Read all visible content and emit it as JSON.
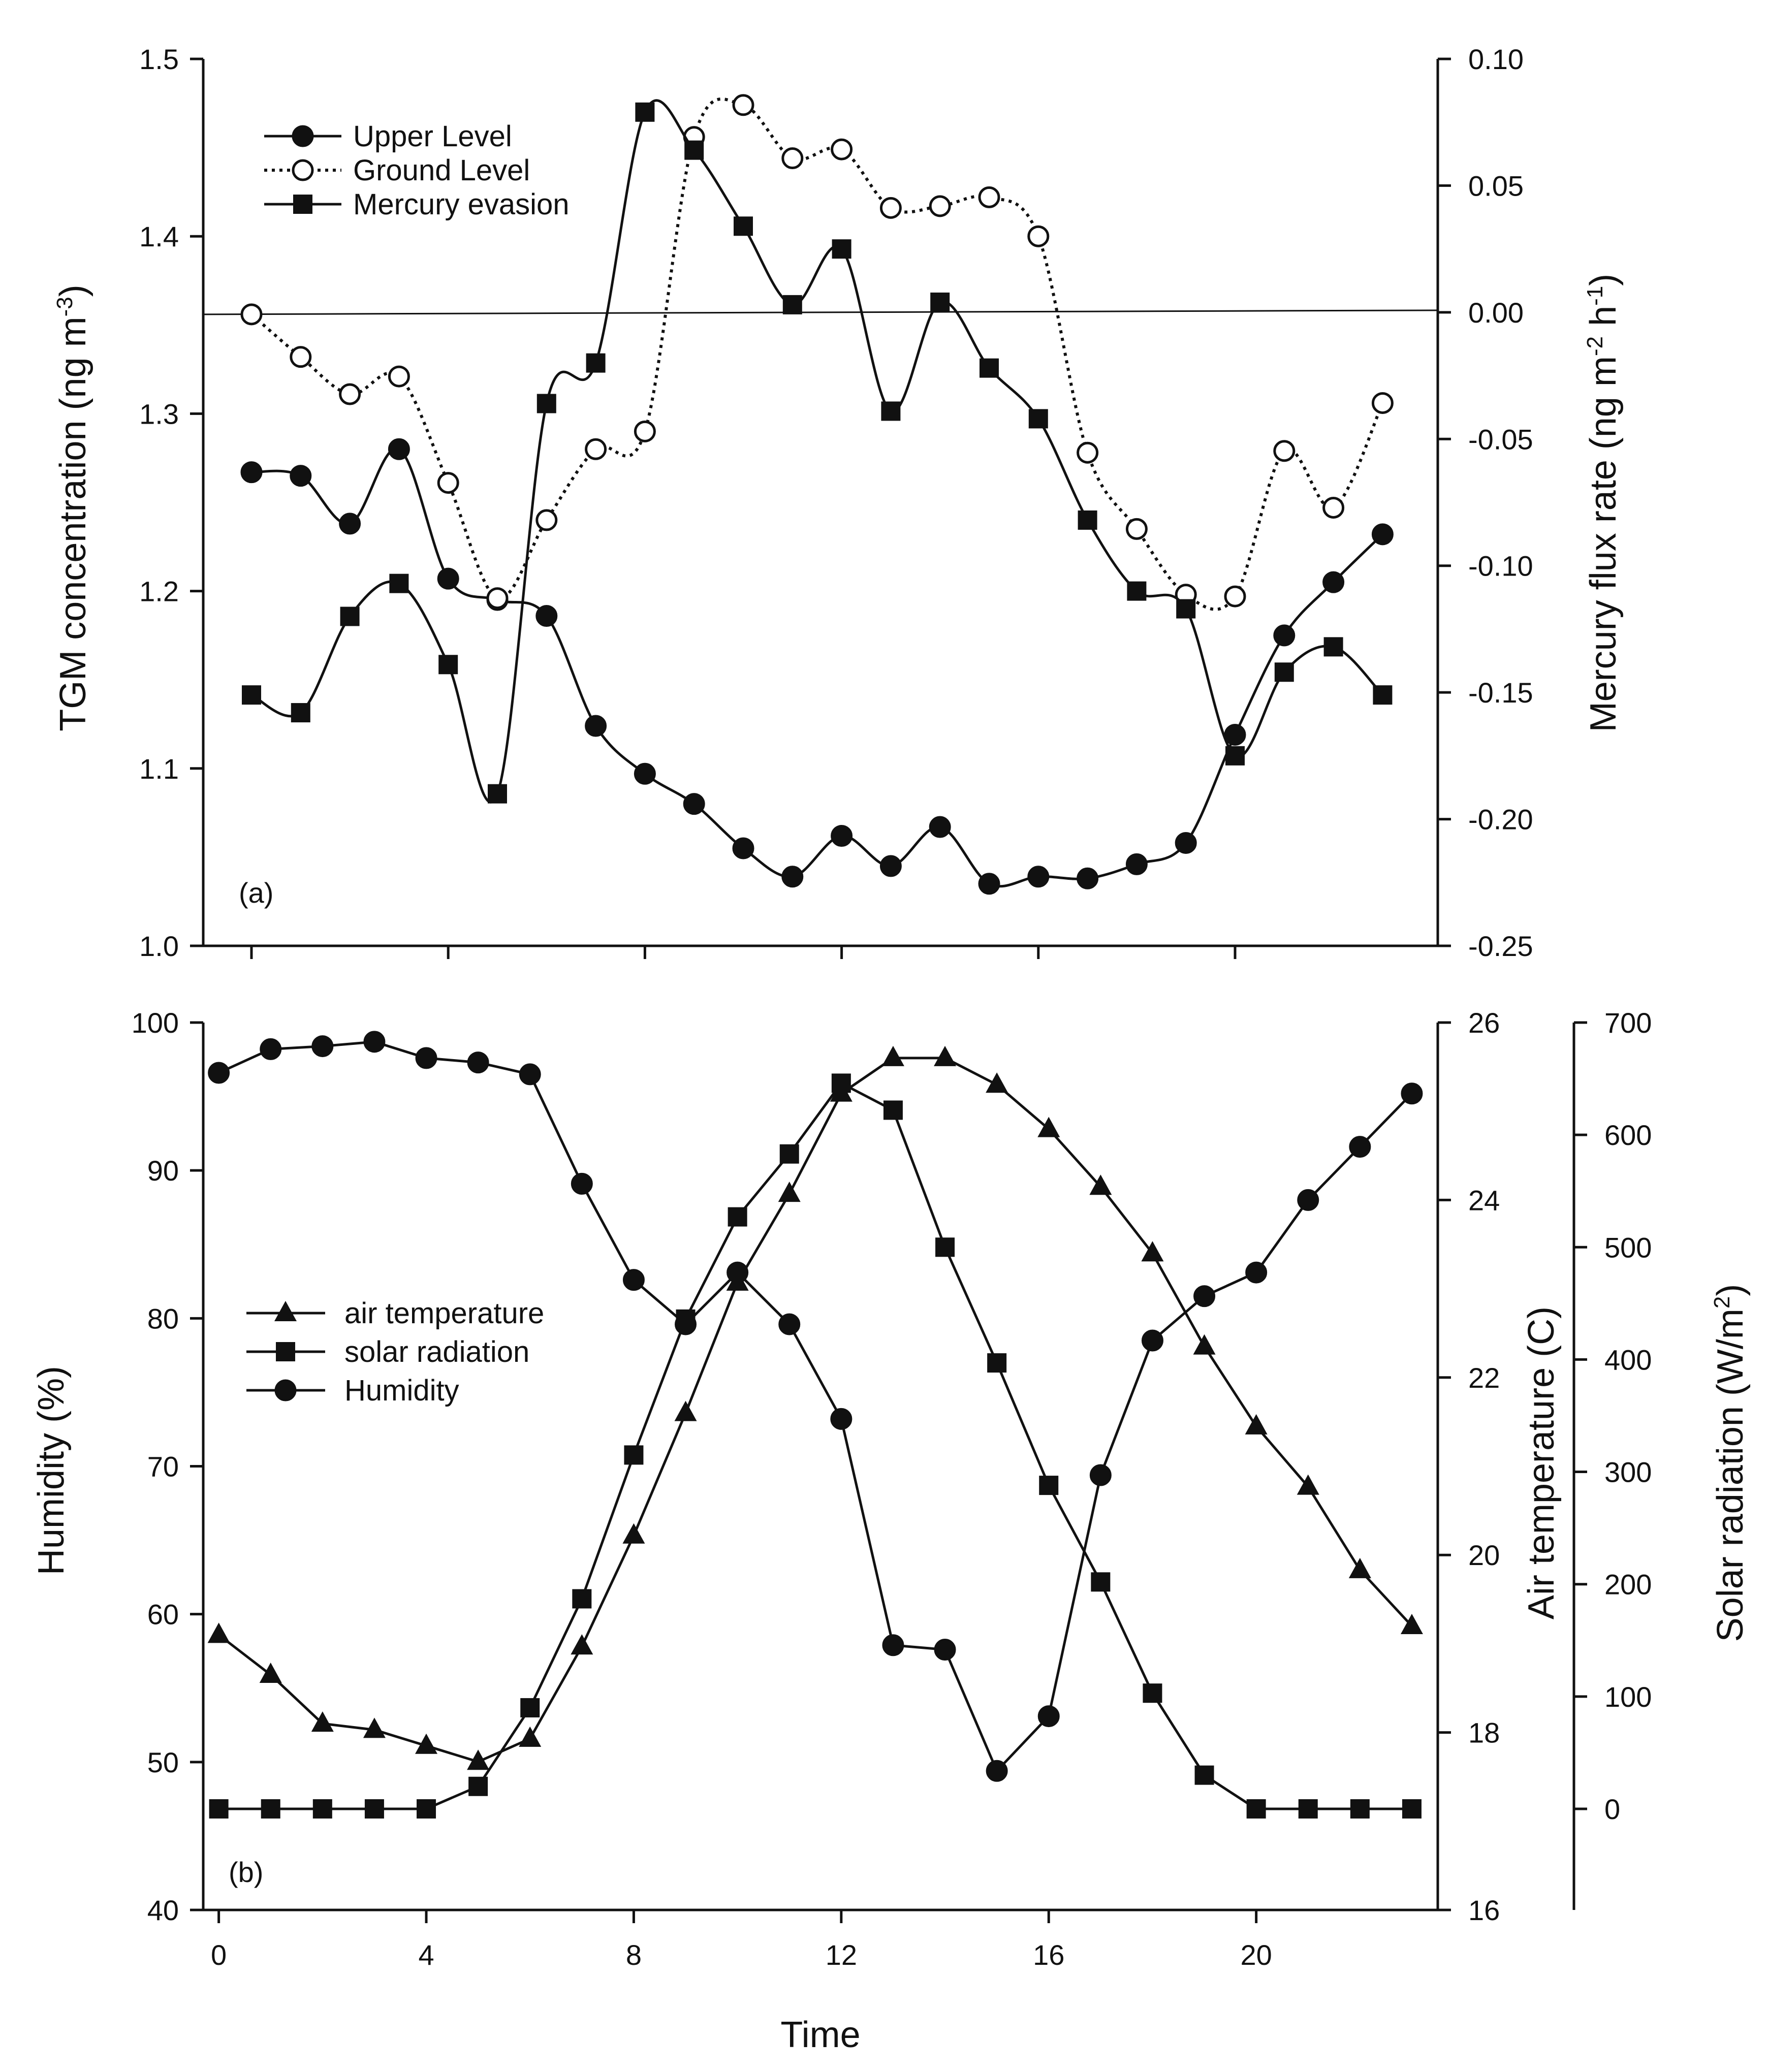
{
  "chart_data": [
    {
      "type": "line",
      "panel_label": "(a)",
      "xlabel": "",
      "ylabel_left": "TGM concentration (ng m",
      "ylabel_left_sup": "-3",
      "ylabel_right_parts": [
        "Mercury flux rate (ng m",
        "-2",
        " h",
        "-1",
        ")"
      ],
      "y_left_range": [
        1.0,
        1.5
      ],
      "y_left_ticks": [
        "1.0",
        "1.1",
        "1.2",
        "1.3",
        "1.4",
        "1.5"
      ],
      "y_right_range": [
        -0.25,
        0.1
      ],
      "y_right_ticks": [
        "-0.25",
        "-0.20",
        "-0.15",
        "-0.10",
        "-0.05",
        "0.00",
        "0.05",
        "0.10"
      ],
      "series": [
        {
          "name": "Upper Level",
          "marker": "circle-filled",
          "line": "solid",
          "axis": "left",
          "x": [
            0,
            1,
            2,
            3,
            4,
            5,
            6,
            7,
            8,
            9,
            10,
            11,
            12,
            13,
            14,
            15,
            16,
            17,
            18,
            19,
            20,
            21,
            22,
            23
          ],
          "values": [
            1.267,
            1.265,
            1.238,
            1.28,
            1.207,
            1.195,
            1.186,
            1.124,
            1.097,
            1.08,
            1.055,
            1.039,
            1.062,
            1.045,
            1.067,
            1.035,
            1.039,
            1.038,
            1.046,
            1.058,
            1.119,
            1.175,
            1.205,
            1.232
          ]
        },
        {
          "name": "Ground Level",
          "marker": "circle-open",
          "line": "dotted",
          "axis": "left",
          "x": [
            0,
            1,
            2,
            3,
            4,
            5,
            6,
            7,
            8,
            9,
            10,
            11,
            12,
            13,
            14,
            15,
            16,
            17,
            18,
            19,
            20,
            21,
            22,
            23
          ],
          "values": [
            1.356,
            1.332,
            1.311,
            1.321,
            1.261,
            1.196,
            1.24,
            1.28,
            1.29,
            1.456,
            1.474,
            1.444,
            1.449,
            1.416,
            1.417,
            1.422,
            1.4,
            1.278,
            1.235,
            1.198,
            1.197,
            1.279,
            1.247,
            1.306
          ]
        },
        {
          "name": "Mercury evasion",
          "marker": "square-filled",
          "line": "solid",
          "axis": "right",
          "x": [
            0,
            1,
            2,
            3,
            4,
            5,
            6,
            7,
            8,
            9,
            10,
            11,
            12,
            13,
            14,
            15,
            16,
            17,
            18,
            19,
            20,
            21,
            22,
            23
          ],
          "values": [
            -0.151,
            -0.158,
            -0.12,
            -0.107,
            -0.139,
            -0.19,
            -0.036,
            -0.02,
            0.079,
            0.064,
            0.034,
            0.003,
            0.025,
            -0.039,
            0.004,
            -0.022,
            -0.042,
            -0.082,
            -0.11,
            -0.117,
            -0.175,
            -0.142,
            -0.132,
            -0.151
          ]
        }
      ]
    },
    {
      "type": "line",
      "panel_label": "(b)",
      "xlabel": "Time",
      "x_ticks": [
        "0",
        "4",
        "8",
        "12",
        "16",
        "20"
      ],
      "x_range": [
        -0.3,
        23.5
      ],
      "ylabel_left": "Humidity (%)",
      "ylabel_right": "Air temperature (C)",
      "ylabel_far_right_parts": [
        "Solar radiation (W/m",
        "2",
        ")"
      ],
      "y_left_range": [
        40,
        100
      ],
      "y_left_ticks": [
        "40",
        "50",
        "60",
        "70",
        "80",
        "90",
        "100"
      ],
      "y_right_range": [
        16,
        26
      ],
      "y_right_ticks": [
        "16",
        "18",
        "20",
        "22",
        "24",
        "26"
      ],
      "y_far_right_range": [
        -90,
        700
      ],
      "y_far_right_ticks": [
        "0",
        "100",
        "200",
        "300",
        "400",
        "500",
        "600",
        "700"
      ],
      "series": [
        {
          "name": "air temperature",
          "marker": "triangle-filled",
          "axis": "right",
          "x": [
            0,
            1,
            2,
            3,
            4,
            5,
            6,
            7,
            8,
            9,
            10,
            11,
            12,
            13,
            14,
            15,
            16,
            17,
            18,
            19,
            20,
            21,
            22,
            23
          ],
          "values": [
            19.1,
            18.65,
            18.1,
            18.03,
            17.85,
            17.67,
            17.93,
            18.97,
            20.22,
            21.6,
            23.07,
            24.07,
            25.2,
            25.6,
            25.6,
            25.3,
            24.8,
            24.15,
            23.4,
            22.35,
            21.45,
            20.77,
            19.83,
            19.2
          ]
        },
        {
          "name": "solar radiation",
          "marker": "square-filled",
          "axis": "far-right",
          "x": [
            0,
            1,
            2,
            3,
            4,
            5,
            6,
            7,
            8,
            9,
            10,
            11,
            12,
            13,
            14,
            15,
            16,
            17,
            18,
            19,
            20,
            21,
            22,
            23
          ],
          "values": [
            0,
            0,
            0,
            0,
            0,
            20,
            90,
            187,
            315,
            436,
            527,
            583,
            646,
            622,
            500,
            397,
            288,
            202,
            103,
            30,
            0,
            0,
            0,
            0
          ]
        },
        {
          "name": "Humidity",
          "marker": "circle-filled",
          "axis": "left",
          "x": [
            0,
            1,
            2,
            3,
            4,
            5,
            6,
            7,
            8,
            9,
            10,
            11,
            12,
            13,
            14,
            15,
            16,
            17,
            18,
            19,
            20,
            21,
            22,
            23
          ],
          "values": [
            96.6,
            98.2,
            98.4,
            98.7,
            97.6,
            97.3,
            96.5,
            89.1,
            82.6,
            79.6,
            83.1,
            79.6,
            73.2,
            57.9,
            57.6,
            49.4,
            53.1,
            69.4,
            78.5,
            81.5,
            83.1,
            88.0,
            91.6,
            95.2
          ]
        }
      ]
    }
  ]
}
